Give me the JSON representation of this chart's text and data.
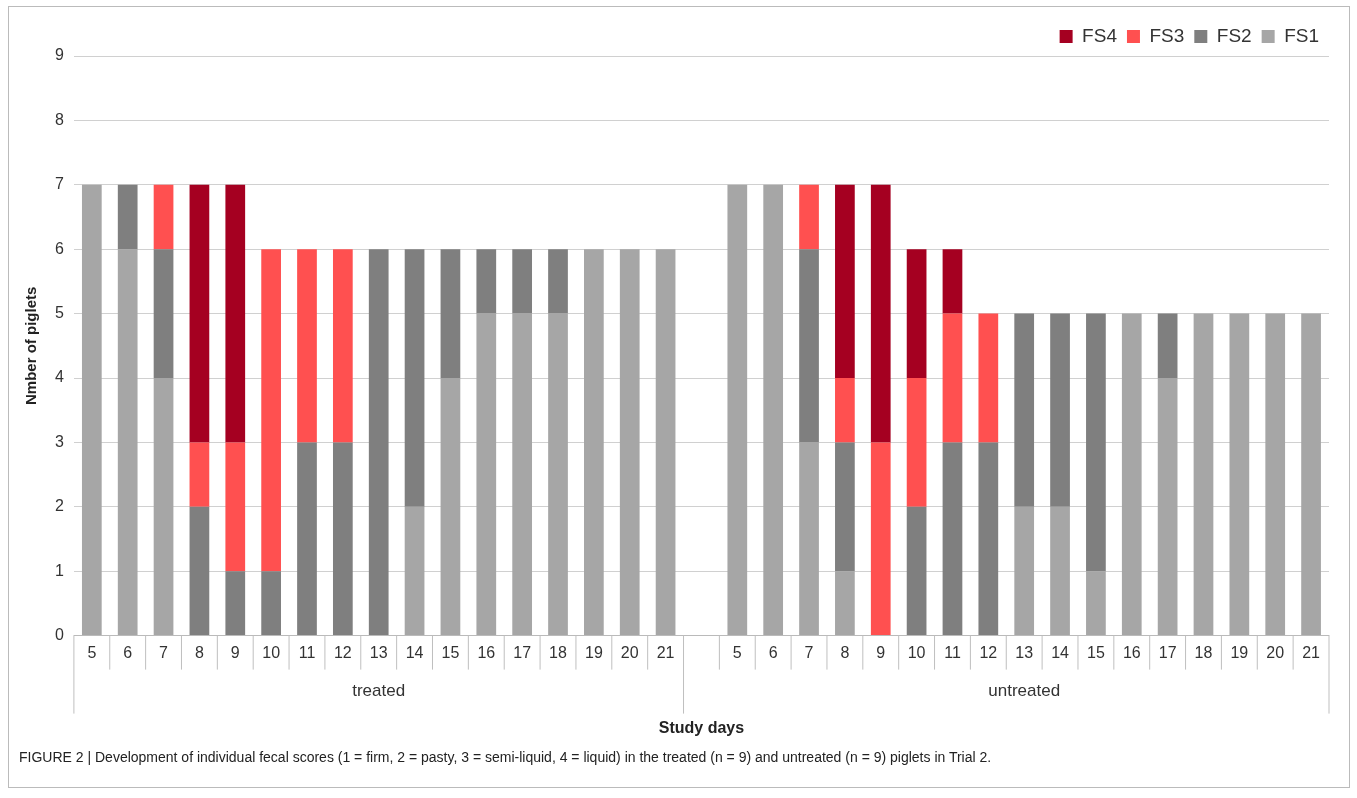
{
  "chart_data": {
    "type": "bar",
    "stacked": true,
    "xlabel": "Study days",
    "ylabel": "Nmber of piglets",
    "categories": [
      "5",
      "6",
      "7",
      "8",
      "9",
      "10",
      "11",
      "12",
      "13",
      "14",
      "15",
      "16",
      "17",
      "18",
      "19",
      "20",
      "21",
      null,
      "5",
      "6",
      "7",
      "8",
      "9",
      "10",
      "11",
      "12",
      "13",
      "14",
      "15",
      "16",
      "17",
      "18",
      "19",
      "20",
      "21"
    ],
    "series": [
      {
        "name": "FS1",
        "color": "#a6a6a6",
        "values": [
          7,
          6,
          4,
          0,
          0,
          0,
          0,
          0,
          0,
          2,
          4,
          5,
          5,
          5,
          6,
          6,
          6,
          null,
          7,
          7,
          3,
          1,
          0,
          0,
          0,
          0,
          2,
          2,
          1,
          5,
          4,
          5,
          5,
          5,
          5
        ]
      },
      {
        "name": "FS2",
        "color": "#7f7f7f",
        "values": [
          0,
          1,
          2,
          2,
          1,
          1,
          3,
          3,
          6,
          4,
          2,
          1,
          1,
          1,
          0,
          0,
          0,
          null,
          0,
          0,
          3,
          2,
          0,
          2,
          3,
          3,
          3,
          3,
          4,
          0,
          1,
          0,
          0,
          0,
          0
        ]
      },
      {
        "name": "FS3",
        "color": "#ff5050",
        "values": [
          0,
          0,
          1,
          1,
          2,
          5,
          3,
          3,
          0,
          0,
          0,
          0,
          0,
          0,
          0,
          0,
          0,
          null,
          0,
          0,
          1,
          1,
          3,
          2,
          2,
          2,
          0,
          0,
          0,
          0,
          0,
          0,
          0,
          0,
          0
        ]
      },
      {
        "name": "FS4",
        "color": "#a50021",
        "values": [
          0,
          0,
          0,
          4,
          4,
          0,
          0,
          0,
          0,
          0,
          0,
          0,
          0,
          0,
          0,
          0,
          0,
          null,
          0,
          0,
          0,
          3,
          4,
          2,
          1,
          0,
          0,
          0,
          0,
          0,
          0,
          0,
          0,
          0,
          0
        ]
      }
    ],
    "ylim": [
      0,
      9
    ],
    "yticks": [
      0,
      1,
      2,
      3,
      4,
      5,
      6,
      7,
      8,
      9
    ],
    "grid": "y",
    "legend": "top right",
    "annotations": [
      "treated",
      "untreated",
      "FIGURE 2 | Development of individual fecal scores (1 = firm, 2 = pasty, 3 = semi-liquid, 4 = liquid) in the treated (n = 9) and untreated (n = 9) piglets in Trial 2."
    ]
  }
}
